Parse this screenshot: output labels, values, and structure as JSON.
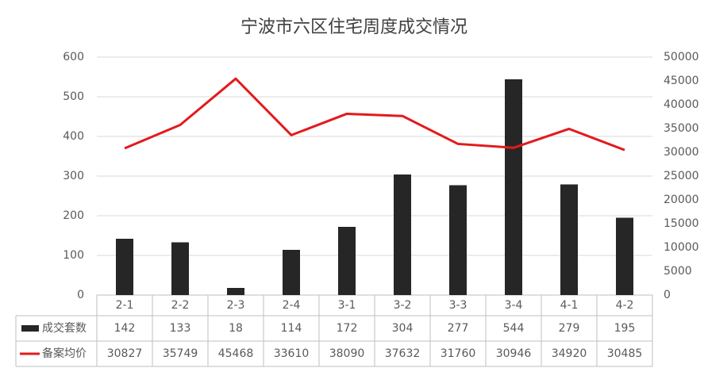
{
  "chart_data": {
    "type": "bar",
    "title": "宁波市六区住宅周度成交情况",
    "categories": [
      "2-1",
      "2-2",
      "2-3",
      "2-4",
      "3-1",
      "3-2",
      "3-3",
      "3-4",
      "4-1",
      "4-2"
    ],
    "series": [
      {
        "name": "成交套数",
        "type": "bar",
        "color": "#262626",
        "values": [
          142,
          133,
          18,
          114,
          172,
          304,
          277,
          544,
          279,
          195
        ]
      },
      {
        "name": "备案均价",
        "type": "line",
        "axis": "y2",
        "color": "#e31a1c",
        "values": [
          30827,
          35749,
          45468,
          33610,
          38090,
          37632,
          31760,
          30946,
          34920,
          30485
        ]
      }
    ],
    "ylim": [
      0,
      600
    ],
    "yticks": [
      0,
      100,
      200,
      300,
      400,
      500,
      600
    ],
    "y2lim": [
      0,
      50000
    ],
    "y2ticks": [
      0,
      5000,
      10000,
      15000,
      20000,
      25000,
      30000,
      35000,
      40000,
      45000,
      50000
    ],
    "grid": true,
    "data_table": true
  }
}
